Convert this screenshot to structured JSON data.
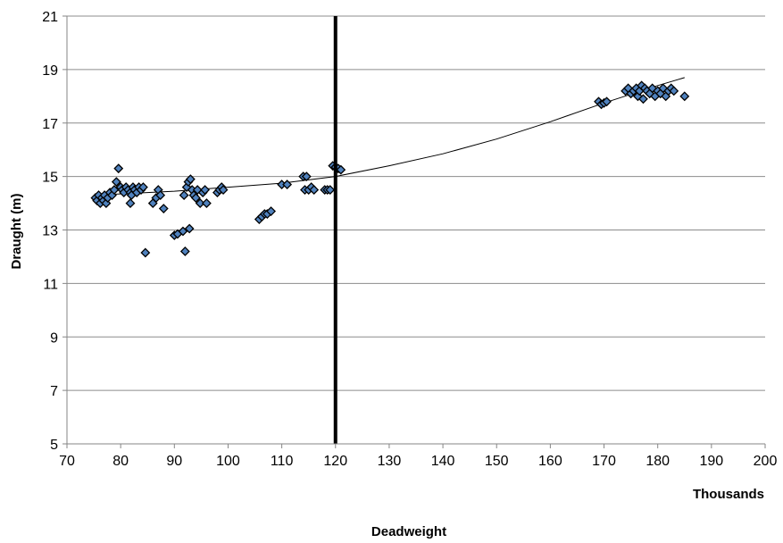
{
  "chart_data": {
    "type": "scatter",
    "title": "",
    "xlabel": "Deadweight",
    "ylabel": "Draught (m)",
    "x_unit_label": "Thousands",
    "xlim": [
      70,
      200
    ],
    "ylim": [
      5,
      21
    ],
    "x_ticks": [
      70,
      80,
      90,
      100,
      110,
      120,
      130,
      140,
      150,
      160,
      170,
      180,
      190,
      200
    ],
    "y_ticks": [
      5,
      7,
      9,
      11,
      13,
      15,
      17,
      19,
      21
    ],
    "grid": "horizontal",
    "legend": "none",
    "vertical_line_x": 120,
    "colors": {
      "marker_fill": "#4f81bd",
      "marker_edge": "#000000",
      "trend": "#000000",
      "grid": "#8c8c8c"
    },
    "trendline": {
      "type": "polynomial",
      "points": [
        [
          75,
          14.3
        ],
        [
          90,
          14.45
        ],
        [
          100,
          14.6
        ],
        [
          110,
          14.75
        ],
        [
          120,
          15.0
        ],
        [
          130,
          15.4
        ],
        [
          140,
          15.85
        ],
        [
          150,
          16.4
        ],
        [
          160,
          17.05
        ],
        [
          170,
          17.75
        ],
        [
          180,
          18.4
        ],
        [
          185,
          18.7
        ]
      ]
    },
    "series": [
      {
        "points": [
          [
            75.3,
            14.2
          ],
          [
            75.6,
            14.1
          ],
          [
            75.9,
            14.3
          ],
          [
            76.2,
            14.0
          ],
          [
            76.5,
            14.2
          ],
          [
            76.8,
            14.1
          ],
          [
            77.0,
            14.3
          ],
          [
            77.3,
            14.0
          ],
          [
            77.6,
            14.2
          ],
          [
            78.0,
            14.4
          ],
          [
            78.4,
            14.3
          ],
          [
            78.8,
            14.5
          ],
          [
            79.2,
            14.8
          ],
          [
            79.6,
            15.3
          ],
          [
            80.0,
            14.6
          ],
          [
            80.3,
            14.5
          ],
          [
            80.6,
            14.4
          ],
          [
            81.0,
            14.6
          ],
          [
            81.4,
            14.5
          ],
          [
            81.8,
            14.4
          ],
          [
            82.0,
            14.3
          ],
          [
            82.3,
            14.6
          ],
          [
            82.6,
            14.5
          ],
          [
            83.0,
            14.4
          ],
          [
            83.4,
            14.6
          ],
          [
            83.8,
            14.5
          ],
          [
            84.2,
            14.6
          ],
          [
            84.6,
            12.15
          ],
          [
            81.8,
            14.0
          ],
          [
            86.0,
            14.0
          ],
          [
            86.6,
            14.2
          ],
          [
            87.0,
            14.5
          ],
          [
            87.4,
            14.3
          ],
          [
            88.0,
            13.8
          ],
          [
            90.0,
            12.8
          ],
          [
            90.6,
            12.85
          ],
          [
            91.6,
            12.95
          ],
          [
            92.0,
            12.2
          ],
          [
            92.3,
            14.6
          ],
          [
            92.6,
            14.8
          ],
          [
            92.8,
            13.05
          ],
          [
            93.0,
            14.9
          ],
          [
            93.3,
            14.5
          ],
          [
            93.6,
            14.3
          ],
          [
            94.0,
            14.2
          ],
          [
            94.3,
            14.5
          ],
          [
            94.8,
            14.0
          ],
          [
            95.3,
            14.4
          ],
          [
            95.7,
            14.5
          ],
          [
            96.0,
            14.0
          ],
          [
            91.8,
            14.3
          ],
          [
            98.0,
            14.4
          ],
          [
            98.4,
            14.5
          ],
          [
            98.8,
            14.6
          ],
          [
            99.1,
            14.5
          ],
          [
            105.8,
            13.4
          ],
          [
            106.3,
            13.5
          ],
          [
            106.8,
            13.6
          ],
          [
            107.3,
            13.6
          ],
          [
            108.0,
            13.7
          ],
          [
            110.0,
            14.7
          ],
          [
            111.0,
            14.7
          ],
          [
            114.0,
            15.0
          ],
          [
            114.3,
            14.5
          ],
          [
            114.6,
            15.0
          ],
          [
            115.0,
            14.5
          ],
          [
            115.5,
            14.6
          ],
          [
            116.0,
            14.5
          ],
          [
            118.0,
            14.5
          ],
          [
            118.5,
            14.5
          ],
          [
            119.0,
            14.5
          ],
          [
            119.5,
            15.4
          ],
          [
            120.0,
            15.35
          ],
          [
            120.5,
            15.3
          ],
          [
            121.0,
            15.25
          ],
          [
            169.0,
            17.8
          ],
          [
            169.5,
            17.7
          ],
          [
            170.0,
            17.75
          ],
          [
            170.5,
            17.8
          ],
          [
            174.0,
            18.2
          ],
          [
            174.5,
            18.3
          ],
          [
            175.0,
            18.1
          ],
          [
            175.5,
            18.2
          ],
          [
            176.0,
            18.3
          ],
          [
            176.3,
            18.0
          ],
          [
            176.6,
            18.2
          ],
          [
            177.0,
            18.4
          ],
          [
            177.3,
            17.9
          ],
          [
            177.6,
            18.3
          ],
          [
            178.0,
            18.2
          ],
          [
            178.5,
            18.1
          ],
          [
            179.0,
            18.3
          ],
          [
            179.5,
            18.0
          ],
          [
            180.0,
            18.2
          ],
          [
            180.5,
            18.1
          ],
          [
            181.0,
            18.3
          ],
          [
            181.5,
            18.0
          ],
          [
            182.0,
            18.2
          ],
          [
            182.5,
            18.3
          ],
          [
            183.0,
            18.2
          ],
          [
            185.0,
            18.0
          ]
        ]
      }
    ]
  }
}
